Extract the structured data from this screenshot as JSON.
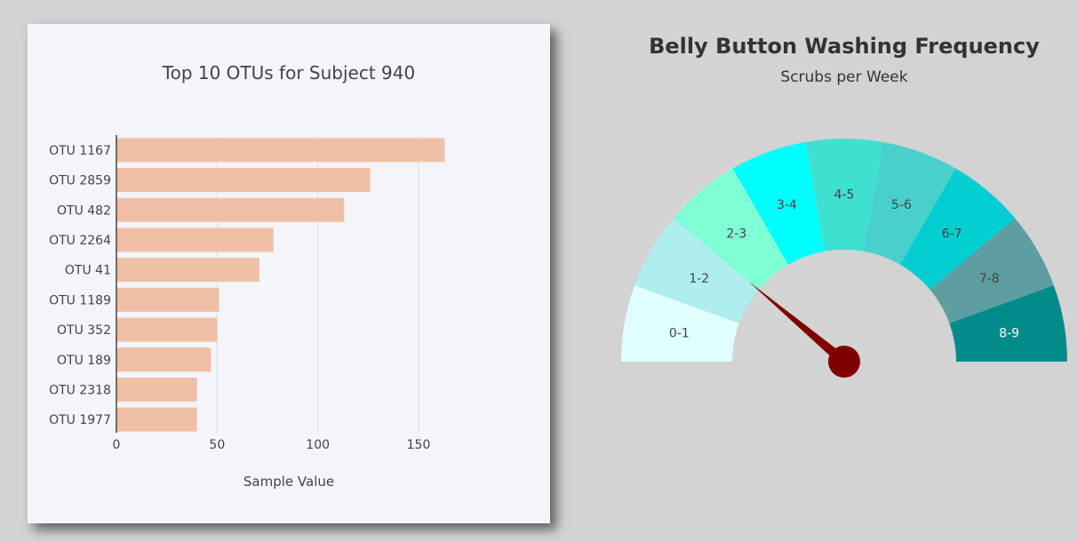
{
  "chart_data": [
    {
      "type": "bar",
      "orientation": "horizontal",
      "title": "Top 10 OTUs for Subject 940",
      "xlabel": "Sample Value",
      "ylabel": "",
      "categories": [
        "OTU 1167",
        "OTU 2859",
        "OTU 482",
        "OTU 2264",
        "OTU 41",
        "OTU 1189",
        "OTU 352",
        "OTU 189",
        "OTU 2318",
        "OTU 1977"
      ],
      "values": [
        163,
        126,
        113,
        78,
        71,
        51,
        50,
        47,
        40,
        40
      ],
      "xlim": [
        0,
        200
      ],
      "x_ticks": [
        0,
        50,
        100,
        150
      ],
      "grid": true,
      "bar_color": "#f0c0a6"
    },
    {
      "type": "gauge",
      "title": "Belly Button Washing Frequency",
      "subtitle": "Scrubs per Week",
      "range": [
        0,
        9
      ],
      "value": 2,
      "segments": [
        {
          "label": "0-1",
          "color": "#e0ffff"
        },
        {
          "label": "1-2",
          "color": "#afeeee"
        },
        {
          "label": "2-3",
          "color": "#7fffd4"
        },
        {
          "label": "3-4",
          "color": "#00ffff"
        },
        {
          "label": "4-5",
          "color": "#40e0d0"
        },
        {
          "label": "5-6",
          "color": "#48d1cc"
        },
        {
          "label": "6-7",
          "color": "#00ced1"
        },
        {
          "label": "7-8",
          "color": "#5f9ea0"
        },
        {
          "label": "8-9",
          "color": "#008b8b"
        }
      ],
      "needle_color": "#800000"
    }
  ]
}
